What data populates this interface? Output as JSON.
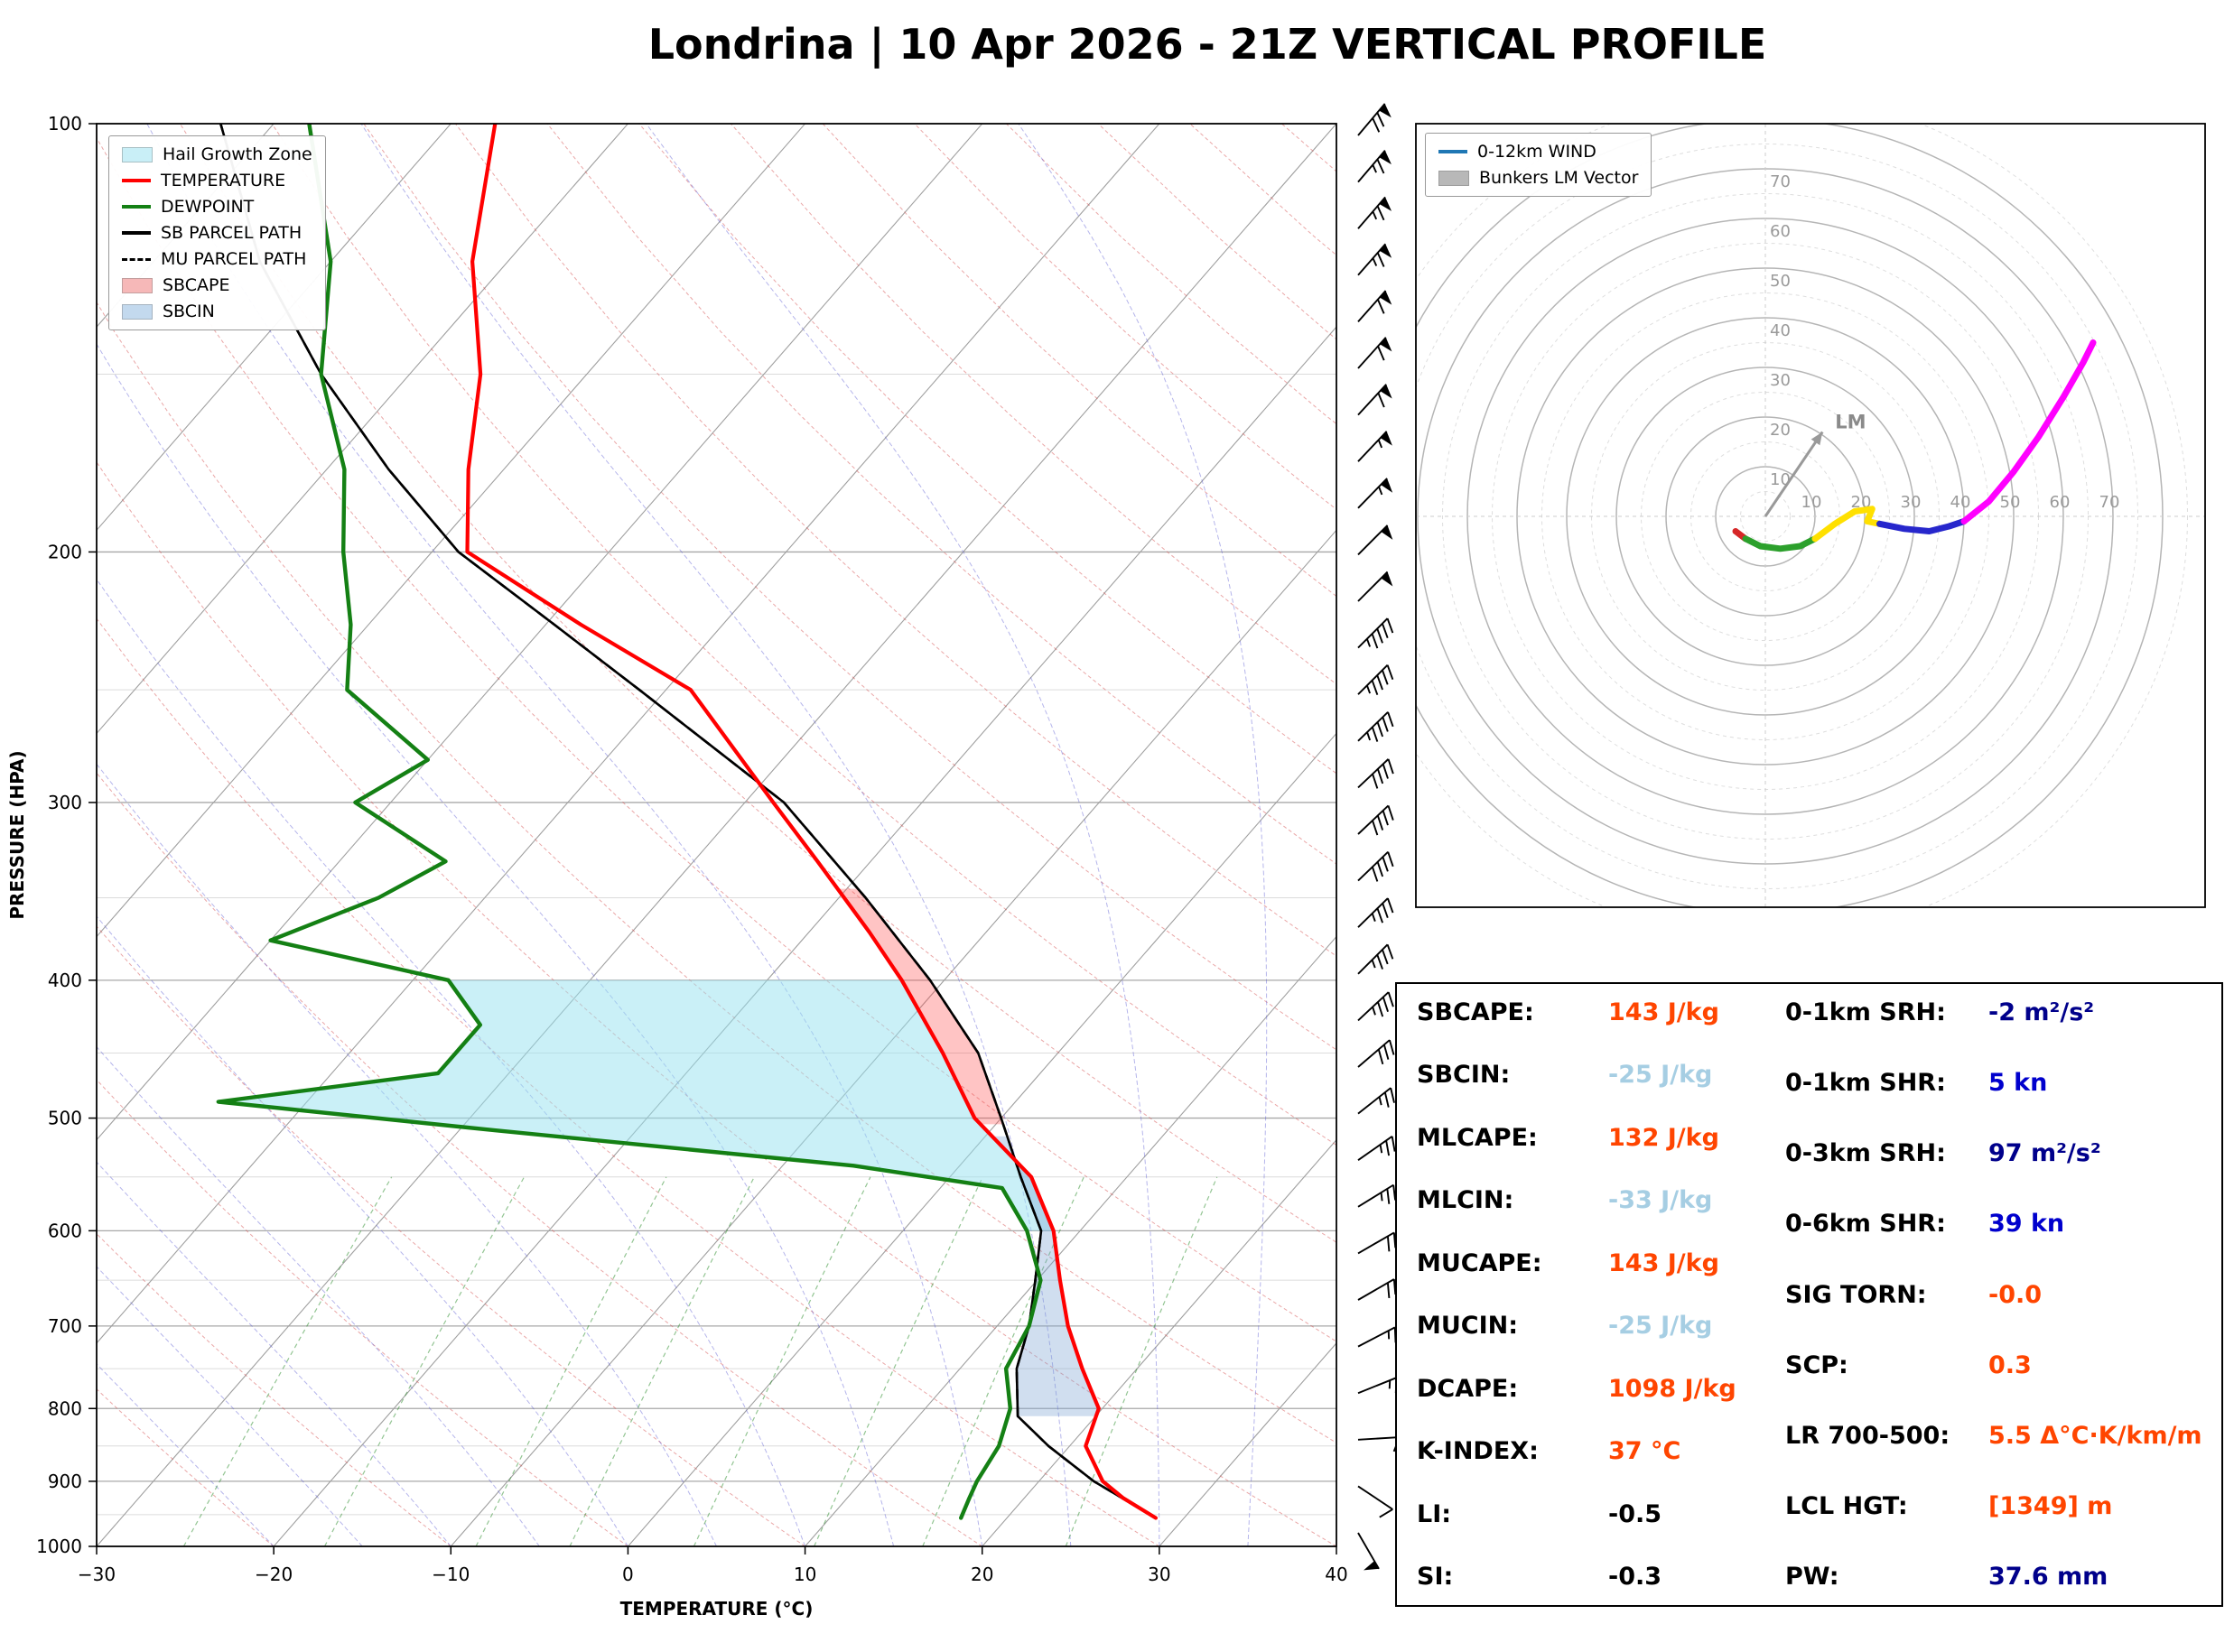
{
  "title": "Londrina | 10 Apr 2026 - 21Z VERTICAL PROFILE",
  "skewt": {
    "ylabel": "PRESSURE (HPA)",
    "xlabel": "TEMPERATURE (°C)",
    "x_ticks": [
      -30,
      -20,
      -10,
      0,
      10,
      20,
      30,
      40
    ],
    "y_ticks": [
      100,
      200,
      300,
      400,
      500,
      600,
      700,
      800,
      900,
      1000
    ],
    "legend": [
      {
        "label": "Hail Growth Zone",
        "type": "patch",
        "color": "#c9eff7"
      },
      {
        "label": "TEMPERATURE",
        "type": "line",
        "color": "#ff0000"
      },
      {
        "label": "DEWPOINT",
        "type": "line",
        "color": "#148014"
      },
      {
        "label": "SB PARCEL PATH",
        "type": "line",
        "color": "#000000"
      },
      {
        "label": "MU PARCEL PATH",
        "type": "dash",
        "color": "#000000"
      },
      {
        "label": "SBCAPE",
        "type": "patch",
        "color": "#f6b8b8"
      },
      {
        "label": "SBCIN",
        "type": "patch",
        "color": "#c3d9ee"
      }
    ]
  },
  "hodograph": {
    "legend": [
      {
        "label": "0-12km WIND",
        "type": "line",
        "color": "#1f77b4"
      },
      {
        "label": "Bunkers LM Vector",
        "type": "patch",
        "color": "#b8b8b8"
      }
    ],
    "lm_label": "LM"
  },
  "chart_data": [
    {
      "type": "line",
      "name": "skewt_vertical_profile",
      "title": "Londrina | 10 Apr 2026 - 21Z VERTICAL PROFILE",
      "xlabel": "TEMPERATURE (°C)",
      "ylabel": "PRESSURE (HPA)",
      "xlim": [
        -30,
        40
      ],
      "ylim": [
        1000,
        100
      ],
      "y_scale": "log",
      "grid": true,
      "series": [
        {
          "name": "TEMPERATURE",
          "color": "#ff0000",
          "pressure_hpa": [
            955,
            925,
            900,
            850,
            800,
            750,
            700,
            650,
            600,
            550,
            500,
            450,
            400,
            370,
            330,
            300,
            250,
            225,
            200,
            175,
            150,
            125,
            100
          ],
          "temp_c": [
            28.4,
            25.6,
            23.6,
            20.9,
            19.8,
            16.9,
            14.0,
            11.3,
            8.5,
            4.6,
            -1.5,
            -6.5,
            -12.4,
            -16.6,
            -23.0,
            -28.4,
            -38.6,
            -48.0,
            -58.0,
            -62.0,
            -66.0,
            -72.0,
            -77.5
          ]
        },
        {
          "name": "DEWPOINT",
          "color": "#148014",
          "pressure_hpa": [
            955,
            925,
            900,
            850,
            800,
            750,
            700,
            650,
            600,
            560,
            540,
            510,
            487,
            465,
            430,
            400,
            375,
            350,
            330,
            300,
            280,
            250,
            225,
            200,
            175,
            150,
            125,
            100
          ],
          "temp_c": [
            17.4,
            16.9,
            16.5,
            16.0,
            14.8,
            12.6,
            11.8,
            10.2,
            7.0,
            3.5,
            -6.0,
            -28.0,
            -45.0,
            -34.0,
            -34.0,
            -38.0,
            -50.0,
            -46.0,
            -44.0,
            -52.0,
            -50.0,
            -58.0,
            -61.0,
            -65.0,
            -69.0,
            -75.0,
            -80.0,
            -88.0
          ]
        },
        {
          "name": "SB_PARCEL_PATH",
          "color": "#000000",
          "pressure_hpa": [
            955,
            900,
            850,
            810,
            750,
            700,
            650,
            600,
            550,
            500,
            450,
            400,
            350,
            300,
            250,
            225,
            200,
            175,
            150,
            125,
            100
          ],
          "temp_c": [
            28.4,
            23.1,
            18.8,
            15.6,
            13.2,
            11.8,
            9.9,
            7.8,
            4.0,
            0.0,
            -4.5,
            -10.8,
            -18.5,
            -27.8,
            -41.5,
            -49.5,
            -58.5,
            -66.5,
            -75.0,
            -84.0,
            -93.0
          ]
        },
        {
          "name": "MU_PARCEL_PATH",
          "color": "#000000",
          "pressure_hpa": [
            955,
            900,
            850,
            810,
            750,
            700,
            650,
            600,
            550,
            500,
            450,
            400,
            350,
            300,
            250,
            225,
            200,
            175,
            150,
            125,
            100
          ],
          "temp_c": [
            28.4,
            23.1,
            18.8,
            15.6,
            13.2,
            11.8,
            9.9,
            7.8,
            4.0,
            0.0,
            -4.5,
            -10.8,
            -18.5,
            -27.8,
            -41.5,
            -49.5,
            -58.5,
            -66.5,
            -75.0,
            -84.0,
            -93.0
          ]
        }
      ],
      "shaded_regions": [
        {
          "name": "hail_growth_zone",
          "between": [
            "DEWPOINT",
            "TEMPERATURE"
          ],
          "p_range": [
            600,
            400
          ],
          "color": "#c9eff7"
        },
        {
          "name": "sbcin",
          "between": [
            "SB_PARCEL_PATH",
            "TEMPERATURE"
          ],
          "p_range": [
            810,
            515
          ],
          "color": "#c3d9ee"
        },
        {
          "name": "sbcape",
          "between": [
            "TEMPERATURE",
            "SB_PARCEL_PATH"
          ],
          "p_range": [
            505,
            345
          ],
          "color": "#f6b8b8"
        }
      ],
      "wind_barbs_kn": [
        {
          "p": 100,
          "kn": 68,
          "dir": 40
        },
        {
          "p": 150,
          "kn": 60,
          "dir": 42
        },
        {
          "p": 200,
          "kn": 52,
          "dir": 45
        },
        {
          "p": 250,
          "kn": 45,
          "dir": 45
        },
        {
          "p": 300,
          "kn": 40,
          "dir": 47
        },
        {
          "p": 400,
          "kn": 35,
          "dir": 45
        },
        {
          "p": 500,
          "kn": 27,
          "dir": 52
        },
        {
          "p": 600,
          "kn": 22,
          "dir": 60
        },
        {
          "p": 700,
          "kn": 18,
          "dir": 60
        },
        {
          "p": 800,
          "kn": 14,
          "dir": 70
        },
        {
          "p": 850,
          "kn": 12,
          "dir": 90
        },
        {
          "p": 900,
          "kn": 10,
          "dir": 120
        },
        {
          "p": 930,
          "kn": 9,
          "dir": 135
        },
        {
          "p": 965,
          "kn": 52,
          "dir": 150
        }
      ]
    },
    {
      "type": "line",
      "name": "hodograph_0_12km_wind",
      "rings_kn": [
        10,
        20,
        30,
        40,
        50,
        60,
        70
      ],
      "segments": [
        {
          "name": "0-1km",
          "color": "#d62728",
          "u": [
            -6,
            -4
          ],
          "v": [
            -3,
            -4.5
          ]
        },
        {
          "name": "1-3km",
          "color": "#2ca02c",
          "u": [
            -4,
            -1,
            3,
            7,
            10
          ],
          "v": [
            -4.5,
            -6,
            -6.5,
            -6,
            -4.5
          ]
        },
        {
          "name": "3-6km",
          "color": "#ffe000",
          "u": [
            10,
            14,
            18,
            21.5,
            20.5,
            23
          ],
          "v": [
            -4.5,
            -1.5,
            1,
            1.5,
            -1,
            -1.5
          ]
        },
        {
          "name": "6-9km",
          "color": "#2727cc",
          "u": [
            23,
            28,
            33,
            37,
            40
          ],
          "v": [
            -1.5,
            -2.5,
            -3,
            -2,
            -1
          ]
        },
        {
          "name": "9-12km",
          "color": "#ff00ff",
          "u": [
            40,
            45,
            50,
            55,
            60,
            64,
            66
          ],
          "v": [
            -1,
            3,
            9,
            16,
            24,
            31,
            35
          ]
        }
      ],
      "bunkers_lm_vector_kn": {
        "u": 11.5,
        "v": 17
      }
    }
  ],
  "stats": {
    "left": [
      {
        "label": "SBCAPE:",
        "value": "143 J/kg",
        "color": "#ff4500"
      },
      {
        "label": "SBCIN:",
        "value": "-25 J/kg",
        "color": "#a6cee3"
      },
      {
        "label": "MLCAPE:",
        "value": "132 J/kg",
        "color": "#ff4500"
      },
      {
        "label": "MLCIN:",
        "value": "-33 J/kg",
        "color": "#a6cee3"
      },
      {
        "label": "MUCAPE:",
        "value": "143 J/kg",
        "color": "#ff4500"
      },
      {
        "label": "MUCIN:",
        "value": "-25 J/kg",
        "color": "#a6cee3"
      },
      {
        "label": "DCAPE:",
        "value": "1098 J/kg",
        "color": "#ff4500"
      },
      {
        "label": "K-INDEX:",
        "value": "37 °C",
        "color": "#ff4500"
      },
      {
        "label": "LI:",
        "value": "-0.5",
        "color": "#000000"
      },
      {
        "label": "SI:",
        "value": "-0.3",
        "color": "#000000"
      }
    ],
    "right": [
      {
        "label": "0-1km SRH:",
        "value": "-2 m²/s²",
        "color": "#00008b"
      },
      {
        "label": "0-1km SHR:",
        "value": "5 kn",
        "color": "#0000cd"
      },
      {
        "label": "0-3km SRH:",
        "value": "97 m²/s²",
        "color": "#00008b"
      },
      {
        "label": "0-6km SHR:",
        "value": "39 kn",
        "color": "#0000cd"
      },
      {
        "label": "SIG TORN:",
        "value": "-0.0",
        "color": "#ff4500"
      },
      {
        "label": "SCP:",
        "value": "0.3",
        "color": "#ff4500"
      },
      {
        "label": "LR 700-500:",
        "value": "5.5 Δ°C·K/km/m",
        "color": "#ff4500"
      },
      {
        "label": "LCL HGT:",
        "value": "[1349] m",
        "color": "#ff4500"
      },
      {
        "label": "PW:",
        "value": "37.6 mm",
        "color": "#00008b"
      }
    ]
  }
}
